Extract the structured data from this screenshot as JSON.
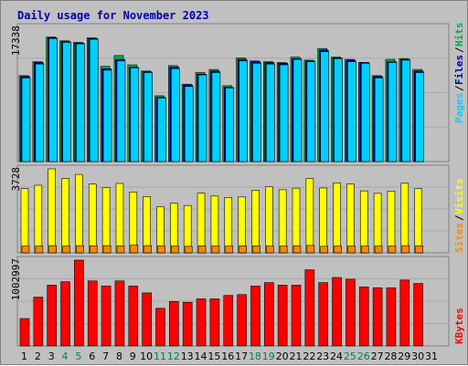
{
  "chart_data": {
    "type": "bar",
    "title": "Daily usage for November 2023",
    "x": [
      "1",
      "2",
      "3",
      "4",
      "5",
      "6",
      "7",
      "8",
      "9",
      "10",
      "11",
      "12",
      "13",
      "14",
      "15",
      "16",
      "17",
      "18",
      "19",
      "20",
      "21",
      "22",
      "23",
      "24",
      "25",
      "26",
      "27",
      "28",
      "29",
      "30",
      "31"
    ],
    "weekend_days": [
      "4",
      "5",
      "11",
      "12",
      "18",
      "19",
      "25",
      "26"
    ],
    "panels": [
      {
        "id": "top",
        "max_label": "17338",
        "ylim": [
          0,
          17338
        ],
        "series": [
          {
            "name": "Hits",
            "color": "#00aa55",
            "values": [
              11100,
              12900,
              16100,
              15600,
              15400,
              16000,
              12300,
              13700,
              12500,
              11700,
              8500,
              12400,
              10000,
              11500,
              11900,
              9800,
              13400,
              13000,
              12900,
              12800,
              13500,
              13100,
              14600,
              13500,
              13200,
              12800,
              11100,
              13200,
              13300,
              11900,
              null
            ]
          },
          {
            "name": "Files",
            "color": "#0000aa",
            "values": [
              11000,
              12800,
              16000,
              15500,
              15300,
              15900,
              12000,
              13200,
              12200,
              11600,
              8300,
              12200,
              9900,
              11300,
              11700,
              9600,
              13200,
              12900,
              12800,
              12700,
              13300,
              13000,
              14400,
              13400,
              13100,
              12800,
              11000,
              12900,
              13200,
              11700,
              null
            ]
          },
          {
            "name": "Pages",
            "color": "#00d0ff",
            "values": [
              10800,
              12600,
              15900,
              15400,
              15200,
              15800,
              11800,
              13000,
              12100,
              11500,
              8200,
              12000,
              9700,
              11200,
              11500,
              9500,
              13000,
              12700,
              12600,
              12500,
              13200,
              12900,
              14200,
              13300,
              12900,
              12700,
              10800,
              12800,
              13100,
              11500,
              null
            ]
          }
        ]
      },
      {
        "id": "mid",
        "max_label": "3728",
        "ylim": [
          0,
          3728
        ],
        "series": [
          {
            "name": "Visits",
            "color": "#ffff00",
            "values": [
              2850,
              3000,
              3728,
              3300,
              3480,
              3050,
              2900,
              3080,
              2700,
              2500,
              2050,
              2200,
              2100,
              2650,
              2520,
              2460,
              2480,
              2780,
              2930,
              2800,
              2870,
              3300,
              2880,
              3100,
              3050,
              2750,
              2640,
              2740,
              3090,
              2850,
              null
            ]
          },
          {
            "name": "Sites",
            "color": "#ff8800",
            "values": [
              300,
              300,
              320,
              300,
              320,
              310,
              320,
              310,
              340,
              320,
              310,
              300,
              290,
              310,
              300,
              300,
              310,
              310,
              300,
              300,
              310,
              330,
              290,
              300,
              300,
              300,
              300,
              300,
              320,
              310,
              null
            ]
          }
        ]
      },
      {
        "id": "bot",
        "max_label": "1002997",
        "ylim": [
          0,
          1002997
        ],
        "series": [
          {
            "name": "KBytes",
            "color": "#ff0000",
            "values": [
              320000,
              570000,
              710000,
              750000,
              1002997,
              760000,
              700000,
              760000,
              700000,
              620000,
              440000,
              520000,
              510000,
              550000,
              550000,
              590000,
              600000,
              700000,
              740000,
              710000,
              710000,
              890000,
              740000,
              800000,
              780000,
              690000,
              680000,
              680000,
              770000,
              730000,
              null
            ]
          }
        ]
      }
    ],
    "legend": {
      "top": [
        "Pages",
        "Files",
        "Hits"
      ],
      "mid": [
        "Sites",
        "Visits"
      ],
      "bot": [
        "KBytes"
      ]
    },
    "colors": {
      "weekday_label": "#000000",
      "weekend_label": "#00805c",
      "frame_bg": "#c0c0c0",
      "title": "#0000aa"
    }
  }
}
